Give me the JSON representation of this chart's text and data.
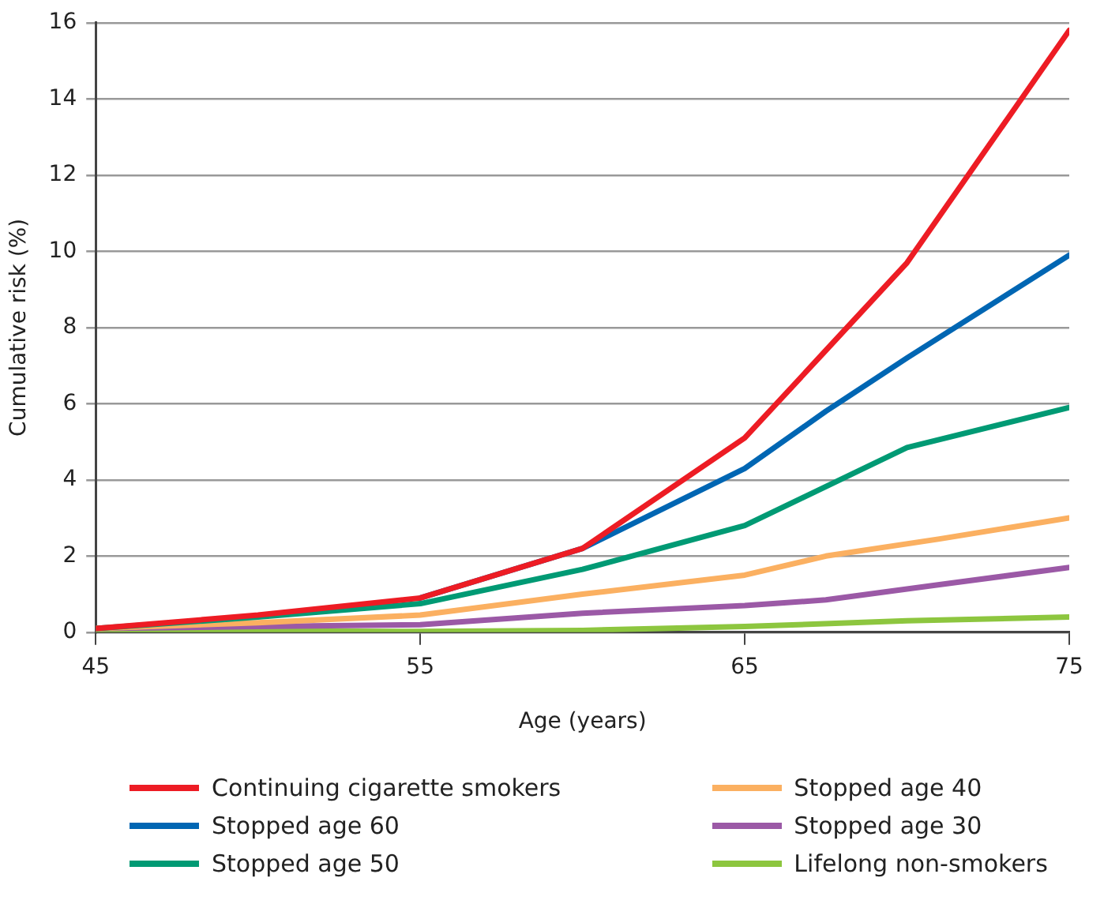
{
  "chart_data": {
    "type": "line",
    "xlabel": "Age (years)",
    "ylabel": "Cumulative risk (%)",
    "xlim": [
      45,
      75
    ],
    "xticks": [
      45,
      55,
      65,
      75
    ],
    "ylim": [
      0,
      16
    ],
    "yticks": [
      0,
      2,
      4,
      6,
      8,
      10,
      12,
      14,
      16
    ],
    "grid": "y",
    "legend": "bottom",
    "marker": "none",
    "line_style": "solid",
    "series": [
      {
        "name": "Continuing cigarette smokers",
        "color": "#ed1c24",
        "x": [
          45,
          50,
          55,
          60,
          65,
          67.5,
          70,
          75
        ],
        "values": [
          0.1,
          0.45,
          0.9,
          2.2,
          5.1,
          7.4,
          9.7,
          15.8
        ]
      },
      {
        "name": "Stopped age 60",
        "color": "#0066b3",
        "x": [
          55,
          60,
          65,
          67.5,
          70,
          75
        ],
        "values": [
          0.9,
          2.2,
          4.3,
          5.8,
          7.2,
          9.9
        ]
      },
      {
        "name": "Stopped age 50",
        "color": "#009a74",
        "x": [
          45,
          50,
          55,
          60,
          65,
          70,
          75
        ],
        "values": [
          0.1,
          0.4,
          0.75,
          1.65,
          2.8,
          4.85,
          5.9
        ]
      },
      {
        "name": "Stopped age 40",
        "color": "#fbb061",
        "x": [
          45,
          50,
          55,
          60,
          65,
          67.5,
          71,
          75
        ],
        "values": [
          0.1,
          0.25,
          0.45,
          1.0,
          1.5,
          2.0,
          2.45,
          3.0
        ]
      },
      {
        "name": "Stopped age 30",
        "color": "#9b59a6",
        "x": [
          45,
          50,
          55,
          60,
          65,
          67.5,
          71,
          75
        ],
        "values": [
          0.1,
          0.15,
          0.2,
          0.5,
          0.7,
          0.85,
          1.25,
          1.7
        ]
      },
      {
        "name": "Lifelong non-smokers",
        "color": "#8dc63f",
        "x": [
          45,
          55,
          60,
          65,
          70,
          75
        ],
        "values": [
          0.05,
          0.02,
          0.05,
          0.15,
          0.3,
          0.4
        ]
      }
    ]
  }
}
